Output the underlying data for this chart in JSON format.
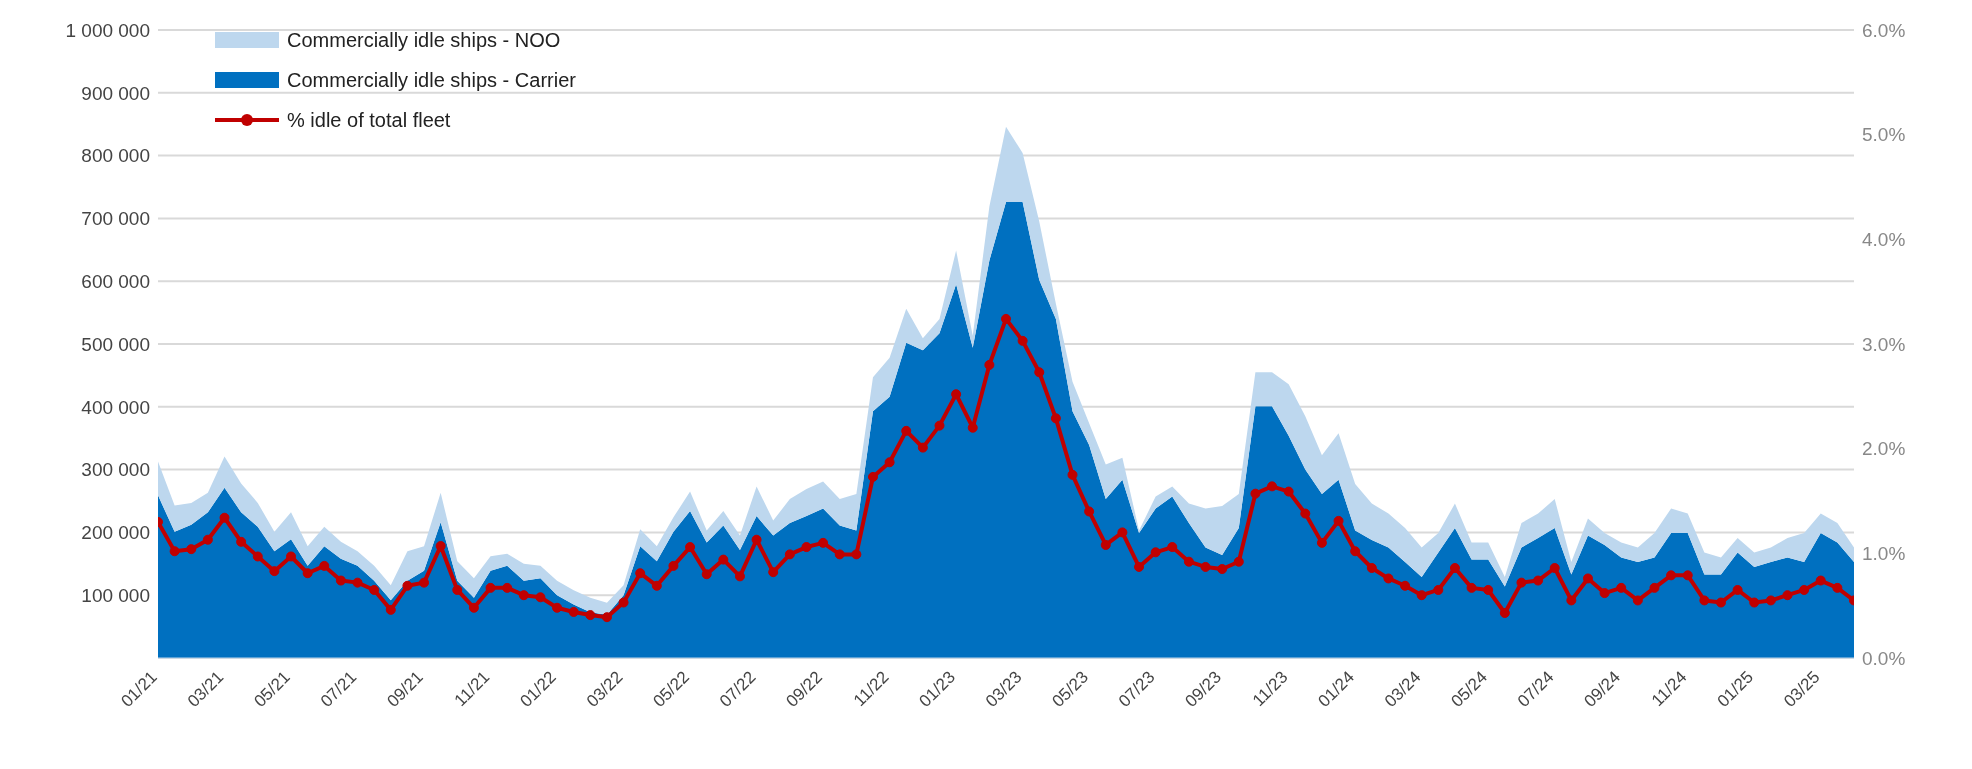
{
  "chart_data": {
    "type": "area",
    "stacked": true,
    "legend": "top left",
    "grid": "y",
    "categories": [
      "01/21",
      null,
      null,
      null,
      "03/21",
      null,
      null,
      null,
      "05/21",
      null,
      null,
      null,
      "07/21",
      null,
      null,
      null,
      "09/21",
      null,
      null,
      null,
      "11/21",
      null,
      null,
      null,
      "01/22",
      null,
      null,
      null,
      "03/22",
      null,
      null,
      null,
      "05/22",
      null,
      null,
      null,
      "07/22",
      null,
      null,
      null,
      "09/22",
      null,
      null,
      null,
      "11/22",
      null,
      null,
      null,
      "01/23",
      null,
      null,
      null,
      "03/23",
      null,
      null,
      null,
      "05/23",
      null,
      null,
      null,
      "07/23",
      null,
      null,
      null,
      "09/23",
      null,
      null,
      null,
      "11/23",
      null,
      null,
      null,
      "01/24",
      null,
      null,
      null,
      "03/24",
      null,
      null,
      null,
      "05/24",
      null,
      null,
      null,
      "07/24",
      null,
      null,
      null,
      "09/24",
      null,
      null,
      null,
      "11/24",
      null,
      null,
      null,
      "01/25",
      null,
      null,
      null,
      "03/25",
      null,
      null
    ],
    "ylim": [
      0,
      1000000
    ],
    "yticks": [
      {
        "value": 0,
        "label": null
      },
      {
        "value": 100000,
        "label": "100 000"
      },
      {
        "value": 200000,
        "label": "200 000"
      },
      {
        "value": 300000,
        "label": "300 000"
      },
      {
        "value": 400000,
        "label": "400 000"
      },
      {
        "value": 500000,
        "label": "500 000"
      },
      {
        "value": 600000,
        "label": "600 000"
      },
      {
        "value": 700000,
        "label": "700 000"
      },
      {
        "value": 800000,
        "label": "800 000"
      },
      {
        "value": 900000,
        "label": "900 000"
      },
      {
        "value": 1000000,
        "label": "1 000 000"
      }
    ],
    "y2lim": [
      0,
      6
    ],
    "y2ticks": [
      {
        "value": 0,
        "label": "0.0%"
      },
      {
        "value": 1,
        "label": "1.0%"
      },
      {
        "value": 2,
        "label": "2.0%"
      },
      {
        "value": 3,
        "label": "3.0%"
      },
      {
        "value": 4,
        "label": "4.0%"
      },
      {
        "value": 5,
        "label": "5.0%"
      },
      {
        "value": 6,
        "label": "6.0%"
      }
    ],
    "series": [
      {
        "name": "Commercially idle ships - Carrier",
        "color": "#0070c0",
        "values": [
          259000,
          201000,
          212000,
          232000,
          271000,
          232000,
          209000,
          170000,
          189000,
          147000,
          178000,
          158000,
          147000,
          123000,
          92000,
          123000,
          139000,
          216000,
          123000,
          96000,
          139000,
          147000,
          123000,
          127000,
          100000,
          85000,
          73000,
          69000,
          100000,
          178000,
          154000,
          201000,
          234000,
          184000,
          211000,
          172000,
          226000,
          195000,
          215000,
          226000,
          238000,
          211000,
          203000,
          393000,
          416000,
          502000,
          490000,
          517000,
          595000,
          494000,
          633000,
          726000,
          726000,
          602000,
          540000,
          393000,
          339000,
          253000,
          284000,
          199000,
          238000,
          257000,
          215000,
          176000,
          164000,
          207000,
          401000,
          401000,
          354000,
          300000,
          261000,
          284000,
          203000,
          188000,
          176000,
          153000,
          129000,
          168000,
          207000,
          157000,
          157000,
          114000,
          176000,
          191000,
          207000,
          133000,
          195000,
          180000,
          160000,
          153000,
          160000,
          199000,
          199000,
          133000,
          133000,
          168000,
          145000,
          153000,
          160000,
          153000,
          199000,
          184000,
          153000
        ]
      },
      {
        "name": "Commercially idle ships - NOO",
        "color": "#bdd7ee",
        "values": [
          54000,
          42000,
          35000,
          31000,
          50000,
          46000,
          38000,
          31000,
          43000,
          31000,
          31000,
          27000,
          23000,
          24000,
          24000,
          47000,
          39000,
          47000,
          31000,
          31000,
          23000,
          19000,
          27000,
          20000,
          23000,
          23000,
          23000,
          19000,
          16000,
          27000,
          24000,
          23000,
          31000,
          19000,
          23000,
          23000,
          47000,
          24000,
          38000,
          43000,
          43000,
          42000,
          58000,
          54000,
          62000,
          54000,
          19000,
          23000,
          54000,
          19000,
          86000,
          120000,
          78000,
          93000,
          24000,
          47000,
          35000,
          55000,
          35000,
          4000,
          19000,
          16000,
          31000,
          62000,
          78000,
          54000,
          54000,
          54000,
          82000,
          85000,
          62000,
          74000,
          74000,
          58000,
          54000,
          54000,
          47000,
          31000,
          39000,
          27000,
          27000,
          15000,
          39000,
          39000,
          46000,
          20000,
          27000,
          19000,
          24000,
          23000,
          39000,
          39000,
          31000,
          35000,
          27000,
          23000,
          23000,
          23000,
          31000,
          46000,
          31000,
          31000,
          23000
        ]
      },
      {
        "name": "% idle of total fleet",
        "type": "line",
        "axis": "y2",
        "marker": "circle",
        "line_style": "solid",
        "color": "#c00000",
        "values": [
          1.3,
          1.02,
          1.04,
          1.13,
          1.34,
          1.11,
          0.97,
          0.83,
          0.97,
          0.81,
          0.88,
          0.74,
          0.72,
          0.65,
          0.46,
          0.69,
          0.72,
          1.07,
          0.65,
          0.48,
          0.67,
          0.67,
          0.6,
          0.58,
          0.48,
          0.44,
          0.41,
          0.39,
          0.53,
          0.81,
          0.69,
          0.88,
          1.06,
          0.8,
          0.94,
          0.78,
          1.13,
          0.82,
          0.99,
          1.06,
          1.1,
          0.99,
          0.99,
          1.73,
          1.87,
          2.17,
          2.01,
          2.22,
          2.52,
          2.2,
          2.8,
          3.24,
          3.03,
          2.73,
          2.29,
          1.75,
          1.4,
          1.08,
          1.2,
          0.87,
          1.01,
          1.06,
          0.92,
          0.87,
          0.85,
          0.92,
          1.57,
          1.64,
          1.59,
          1.38,
          1.1,
          1.31,
          1.02,
          0.86,
          0.76,
          0.69,
          0.6,
          0.65,
          0.86,
          0.67,
          0.65,
          0.43,
          0.72,
          0.74,
          0.86,
          0.55,
          0.76,
          0.62,
          0.67,
          0.55,
          0.67,
          0.79,
          0.79,
          0.55,
          0.53,
          0.65,
          0.53,
          0.55,
          0.6,
          0.65,
          0.74,
          0.67,
          0.55
        ]
      }
    ]
  }
}
